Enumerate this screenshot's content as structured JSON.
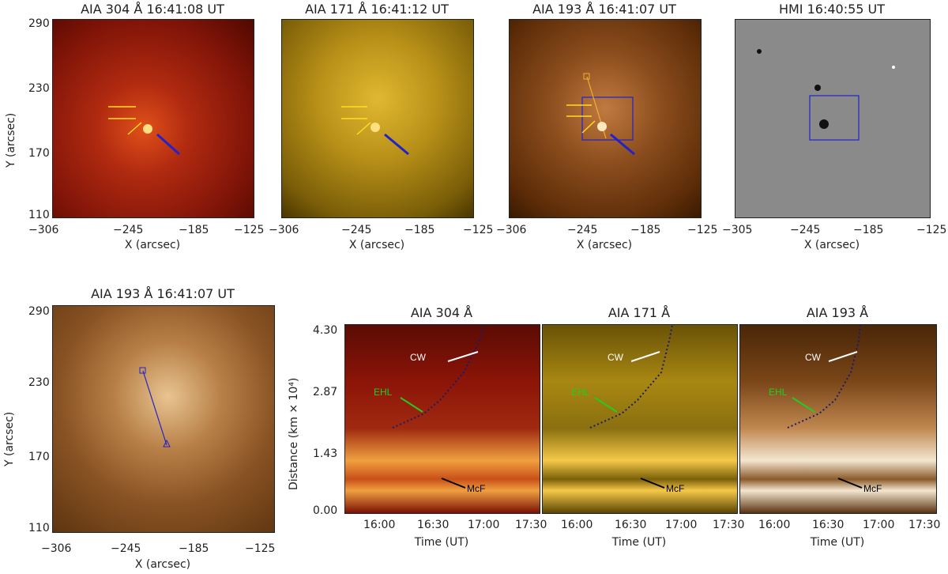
{
  "top": [
    {
      "title": "AIA 304 Å 16:41:08 UT",
      "bg": "#8f1a0c",
      "x_ticks": [
        "−306",
        "−245",
        "−185",
        "−125"
      ]
    },
    {
      "title": "AIA 171 Å 16:41:12 UT",
      "bg": "#a88712",
      "x_ticks": [
        "−306",
        "−245",
        "−185",
        "−125"
      ]
    },
    {
      "title": "AIA 193 Å 16:41:07 UT",
      "bg": "#7a4215",
      "x_ticks": [
        "−306",
        "−245",
        "−185",
        "−125"
      ]
    },
    {
      "title": "HMI 16:40:55 UT",
      "bg": "#888888",
      "x_ticks": [
        "−305",
        "−245",
        "−185",
        "−125"
      ]
    }
  ],
  "top_y_ticks": [
    "290",
    "230",
    "170",
    "110"
  ],
  "top_ylabel": "Y (arcsec)",
  "top_xlabel": "X (arcsec)",
  "bottom_left": {
    "title": "AIA 193 Å 16:41:07 UT",
    "bg": "#8a5424",
    "y_ticks": [
      "290",
      "230",
      "170",
      "110"
    ],
    "x_ticks": [
      "−306",
      "−245",
      "−185",
      "−125"
    ],
    "ylabel": "Y (arcsec)",
    "xlabel": "X (arcsec)"
  },
  "timeslices": [
    {
      "title": "AIA 304 Å",
      "bg": "#8c1408",
      "band": "#f0a040"
    },
    {
      "title": "AIA 171 Å",
      "bg": "#9c7a10",
      "band": "#f5c848"
    },
    {
      "title": "AIA 193 Å",
      "bg": "#7a4618",
      "band": "#f4e6d0"
    }
  ],
  "ts_y_ticks": [
    "4.30",
    "2.87",
    "1.43",
    "0.00"
  ],
  "ts_ylabel": "Distance (km × 10⁴)",
  "ts_x_ticks": [
    "16:00",
    "16:30",
    "17:00",
    "17:30"
  ],
  "ts_xlabel": "Time (UT)",
  "annotations": {
    "cw": "CW",
    "ehl": "EHL",
    "mcf": "McF"
  },
  "colors": {
    "ehl": "#22cc22",
    "cw": "#ffffff",
    "mcf": "#000000",
    "box": "#2222cc",
    "arrow_yellow": "#ffdd22"
  }
}
